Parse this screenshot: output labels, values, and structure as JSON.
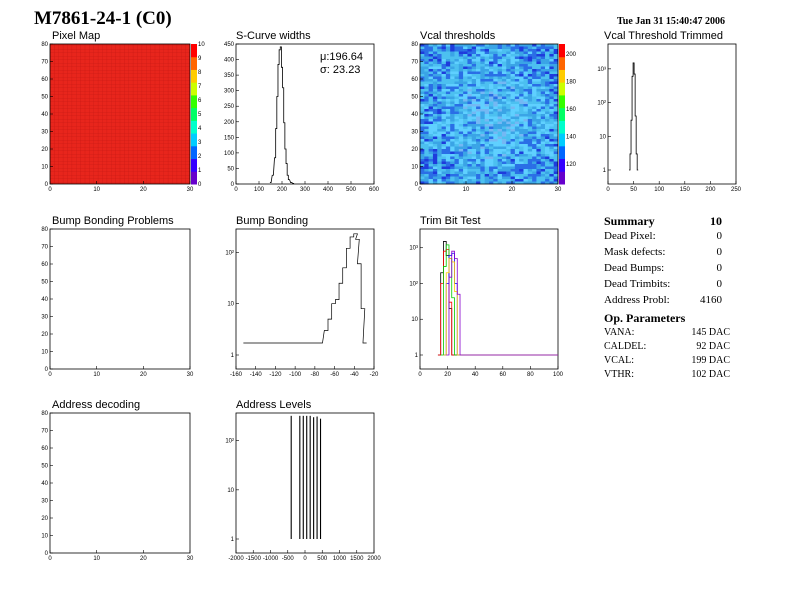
{
  "header": {
    "title": "M7861-24-1 (C0)",
    "timestamp": "Tue Jan 31 15:40:47 2006"
  },
  "panels": {
    "pixel_map": {
      "title": "Pixel Map",
      "xticks": [
        "0",
        "10",
        "20",
        "30"
      ],
      "yticks": [
        "0",
        "10",
        "20",
        "30",
        "40",
        "50",
        "60",
        "70",
        "80"
      ],
      "zticks": [
        "0",
        "1",
        "2",
        "3",
        "4",
        "5",
        "6",
        "7",
        "8",
        "9",
        "10"
      ]
    },
    "scurve": {
      "title": "S-Curve widths",
      "mu": "μ:196.64",
      "sigma": "σ: 23.23",
      "xticks": [
        "0",
        "100",
        "200",
        "300",
        "400",
        "500",
        "600"
      ],
      "yticks": [
        "0",
        "50",
        "100",
        "150",
        "200",
        "250",
        "300",
        "350",
        "400",
        "450"
      ]
    },
    "vcal_thr": {
      "title": "Vcal thresholds",
      "xticks": [
        "0",
        "10",
        "20",
        "30"
      ],
      "yticks": [
        "0",
        "10",
        "20",
        "30",
        "40",
        "50",
        "60",
        "70",
        "80"
      ],
      "zticks": [
        "120",
        "140",
        "160",
        "180",
        "200"
      ]
    },
    "vcal_trim": {
      "title": "Vcal Threshold Trimmed",
      "xticks": [
        "0",
        "50",
        "100",
        "150",
        "200",
        "250"
      ],
      "yticks": [
        "1",
        "10",
        "10²",
        "10³"
      ]
    },
    "bump_problems": {
      "title": "Bump Bonding Problems",
      "xticks": [
        "0",
        "10",
        "20",
        "30"
      ],
      "yticks": [
        "0",
        "10",
        "20",
        "30",
        "40",
        "50",
        "60",
        "70",
        "80"
      ]
    },
    "bump_bonding": {
      "title": "Bump Bonding",
      "xticks": [
        "-160",
        "-140",
        "-120",
        "-100",
        "-80",
        "-60",
        "-40",
        "-20"
      ],
      "yticks": [
        "1",
        "10",
        "10²"
      ]
    },
    "trim_bit": {
      "title": "Trim Bit Test",
      "xticks": [
        "0",
        "20",
        "40",
        "60",
        "80",
        "100"
      ],
      "yticks": [
        "1",
        "10",
        "10²",
        "10³"
      ]
    },
    "addr_decoding": {
      "title": "Address decoding",
      "xticks": [
        "0",
        "10",
        "20",
        "30"
      ],
      "yticks": [
        "0",
        "10",
        "20",
        "30",
        "40",
        "50",
        "60",
        "70",
        "80"
      ]
    },
    "addr_levels": {
      "title": "Address Levels",
      "xticks": [
        "-2000",
        "-1500",
        "-1000",
        "-500",
        "0",
        "500",
        "1000",
        "1500",
        "2000"
      ],
      "yticks": [
        "1",
        "10",
        "10²"
      ]
    }
  },
  "summary": {
    "title": "Summary",
    "title_value": "10",
    "rows": [
      {
        "label": "Dead Pixel:",
        "value": "0"
      },
      {
        "label": "Mask defects:",
        "value": "0"
      },
      {
        "label": "Dead Bumps:",
        "value": "0"
      },
      {
        "label": "Dead Trimbits:",
        "value": "0"
      },
      {
        "label": "Address Probl:",
        "value": "4160"
      }
    ]
  },
  "op_params": {
    "title": "Op. Parameters",
    "rows": [
      {
        "label": "VANA:",
        "value": "145 DAC"
      },
      {
        "label": "CALDEL:",
        "value": "92 DAC"
      },
      {
        "label": "VCAL:",
        "value": "199 DAC"
      },
      {
        "label": "VTHR:",
        "value": "102 DAC"
      }
    ]
  },
  "colors": {
    "pixel_map_fill": "#e8251c",
    "vcal_base": "#3aa4e6"
  },
  "chart_data": [
    {
      "type": "heatmap",
      "title": "Pixel Map",
      "xlim": [
        0,
        32
      ],
      "ylim": [
        0,
        80
      ],
      "zlim": [
        0,
        10
      ],
      "uniform_value": 10
    },
    {
      "type": "line",
      "title": "S-Curve widths",
      "xlim": [
        0,
        600
      ],
      "ylim": [
        0,
        480
      ],
      "x": [
        150,
        160,
        170,
        175,
        180,
        185,
        190,
        195,
        200,
        205,
        210,
        215,
        220,
        225,
        230,
        240,
        250
      ],
      "values": [
        5,
        30,
        90,
        190,
        300,
        410,
        460,
        470,
        400,
        330,
        210,
        120,
        70,
        30,
        15,
        5,
        2
      ]
    },
    {
      "type": "heatmap",
      "title": "Vcal thresholds",
      "xlim": [
        0,
        32
      ],
      "ylim": [
        0,
        80
      ],
      "zlim": [
        110,
        210
      ]
    },
    {
      "type": "line",
      "title": "Vcal Threshold Trimmed",
      "xlim": [
        0,
        250
      ],
      "ylim": [
        1,
        4000
      ],
      "log_y": true,
      "x": [
        42,
        44,
        46,
        48,
        50,
        52,
        54,
        56,
        58
      ],
      "values": [
        1,
        3,
        30,
        600,
        1500,
        700,
        40,
        3,
        1
      ]
    },
    {
      "type": "heatmap",
      "title": "Bump Bonding Problems",
      "xlim": [
        0,
        32
      ],
      "ylim": [
        0,
        80
      ],
      "empty": true
    },
    {
      "type": "line",
      "title": "Bump Bonding",
      "xlim": [
        -160,
        -10
      ],
      "ylim": [
        1,
        300
      ],
      "log_y": true,
      "x": [
        -150,
        -140,
        -100,
        -68,
        -62,
        -58,
        -54,
        -50,
        -46,
        -42,
        -38,
        -34,
        -30,
        -28,
        -26,
        -22,
        -20
      ],
      "values": [
        1,
        1,
        1,
        1,
        3,
        5,
        10,
        12,
        25,
        50,
        120,
        200,
        230,
        180,
        60,
        8,
        1
      ]
    },
    {
      "type": "line",
      "title": "Trim Bit Test",
      "xlim": [
        0,
        100
      ],
      "ylim": [
        1,
        3000
      ],
      "log_y": true,
      "series": [
        {
          "color": "#000000",
          "x": [
            14,
            16,
            18,
            20,
            22,
            24
          ],
          "values": [
            1,
            200,
            1500,
            600,
            20,
            1
          ]
        },
        {
          "color": "#ff0000",
          "x": [
            14,
            16,
            18,
            20,
            22,
            24
          ],
          "values": [
            1,
            100,
            800,
            900,
            30,
            1
          ]
        },
        {
          "color": "#00cc00",
          "x": [
            16,
            18,
            20,
            22,
            24,
            26
          ],
          "values": [
            1,
            300,
            1200,
            500,
            40,
            1
          ]
        },
        {
          "color": "#0000ff",
          "x": [
            18,
            20,
            22,
            24,
            26,
            28
          ],
          "values": [
            1,
            100,
            600,
            700,
            100,
            1
          ]
        },
        {
          "color": "#ffcc00",
          "x": [
            18,
            20,
            22,
            24,
            26,
            28
          ],
          "values": [
            1,
            200,
            500,
            400,
            60,
            1
          ]
        },
        {
          "color": "#8800cc",
          "x": [
            20,
            22,
            24,
            26,
            28,
            30
          ],
          "values": [
            1,
            150,
            800,
            500,
            50,
            1
          ]
        }
      ]
    },
    {
      "type": "heatmap",
      "title": "Address decoding",
      "xlim": [
        0,
        32
      ],
      "ylim": [
        0,
        80
      ],
      "empty": true
    },
    {
      "type": "bar",
      "title": "Address Levels",
      "xlim": [
        -2000,
        2000
      ],
      "ylim": [
        1,
        500
      ],
      "log_y": true,
      "x": [
        -400,
        -150,
        -50,
        50,
        150,
        250,
        350,
        450
      ],
      "values": [
        320,
        320,
        320,
        320,
        320,
        300,
        310,
        280
      ]
    }
  ]
}
